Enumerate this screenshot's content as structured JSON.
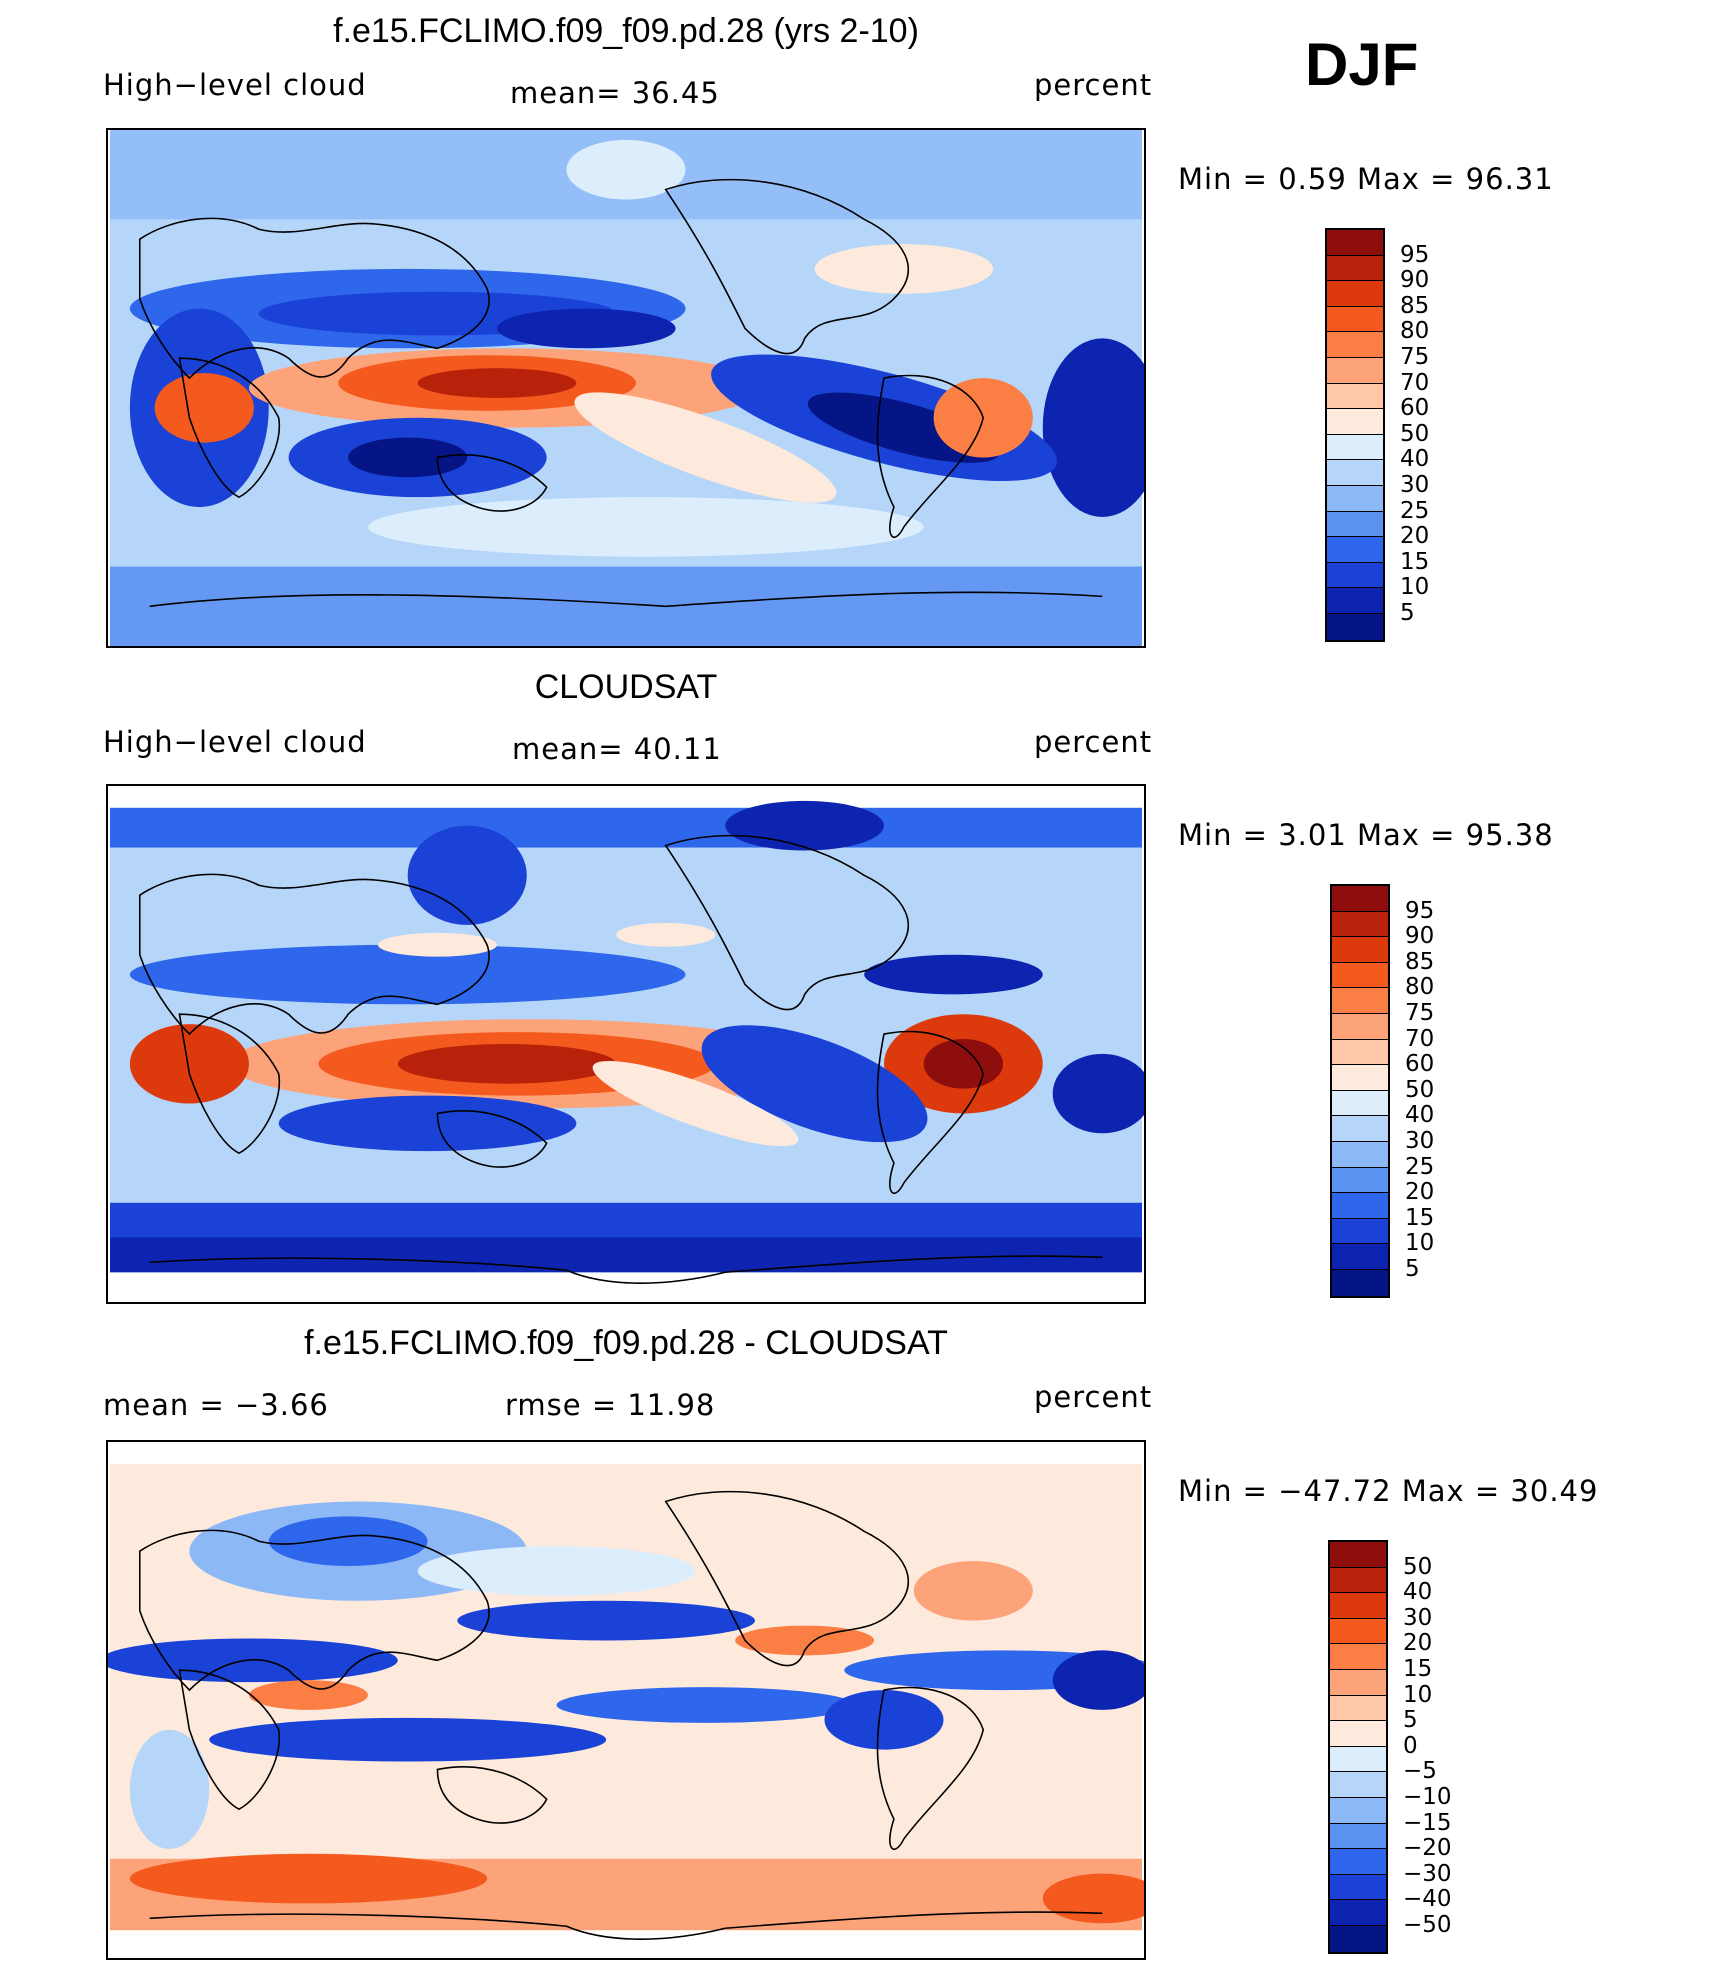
{
  "season": "DJF",
  "panels": [
    {
      "title": "f.e15.FCLIMO.f09_f09.pd.28 (yrs 2-10)",
      "left_label": "High−level cloud",
      "center_label": "mean=   36.45",
      "right_label": "percent",
      "minmax": "Min  =     0.59  Max  =    96.31",
      "colorbar_labels": [
        "95",
        "90",
        "85",
        "80",
        "75",
        "70",
        "60",
        "50",
        "40",
        "30",
        "25",
        "20",
        "15",
        "10",
        "5"
      ],
      "colors": [
        "#8e0d0d",
        "#b8210a",
        "#dc3a0c",
        "#f45a1e",
        "#fb7f45",
        "#fca37a",
        "#fdc7a8",
        "#feeadd",
        "#dceefc",
        "#b6d6f9",
        "#8cb8f6",
        "#5b91f1",
        "#2e66ec",
        "#1a42d6",
        "#0c24b0",
        "#051585"
      ]
    },
    {
      "title": "CLOUDSAT",
      "left_label": "High−level cloud",
      "center_label": "mean=   40.11",
      "right_label": "percent",
      "minmax": "Min  =     3.01  Max  =    95.38",
      "colorbar_labels": [
        "95",
        "90",
        "85",
        "80",
        "75",
        "70",
        "60",
        "50",
        "40",
        "30",
        "25",
        "20",
        "15",
        "10",
        "5"
      ],
      "colors": [
        "#8e0d0d",
        "#b8210a",
        "#dc3a0c",
        "#f45a1e",
        "#fb7f45",
        "#fca37a",
        "#fdc7a8",
        "#feeadd",
        "#dceefc",
        "#b6d6f9",
        "#8cb8f6",
        "#5b91f1",
        "#2e66ec",
        "#1a42d6",
        "#0c24b0",
        "#051585"
      ]
    },
    {
      "title": "f.e15.FCLIMO.f09_f09.pd.28 - CLOUDSAT",
      "left_label": "mean  =    −3.66",
      "center_label": "rmse  =    11.98",
      "right_label": "percent",
      "minmax": "Min  = −47.72  Max  =    30.49",
      "colorbar_labels": [
        "50",
        "40",
        "30",
        "20",
        "15",
        "10",
        "5",
        "0",
        "−5",
        "−10",
        "−15",
        "−20",
        "−30",
        "−40",
        "−50"
      ],
      "colors": [
        "#8e0d0d",
        "#b8210a",
        "#dc3a0c",
        "#f45a1e",
        "#fb7f45",
        "#fca37a",
        "#fdc7a8",
        "#feeadd",
        "#dceefc",
        "#b6d6f9",
        "#8cb8f6",
        "#5b91f1",
        "#2e66ec",
        "#1a42d6",
        "#0c24b0",
        "#051585"
      ]
    }
  ]
}
